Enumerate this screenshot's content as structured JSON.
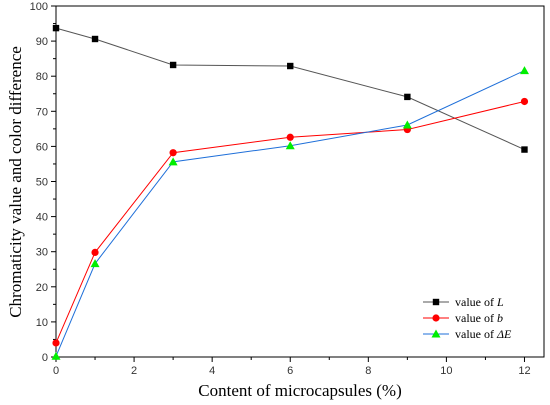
{
  "chart_data": {
    "type": "line",
    "title": "",
    "xlabel": "Content of microcapsules (%)",
    "ylabel": "Chromaticity value and color difference",
    "xlim": [
      0,
      12.5
    ],
    "ylim": [
      0,
      100
    ],
    "x_ticks": [
      0,
      2,
      4,
      6,
      8,
      10,
      12
    ],
    "y_ticks": [
      0,
      10,
      20,
      30,
      40,
      50,
      60,
      70,
      80,
      90,
      100
    ],
    "x_tick_labels": [
      "0",
      "2",
      "4",
      "6",
      "8",
      "10",
      "12"
    ],
    "y_tick_labels": [
      "0",
      "10",
      "20",
      "30",
      "40",
      "50",
      "60",
      "70",
      "80",
      "90",
      "100"
    ],
    "grid": false,
    "legend_position": "bottom-right",
    "x": [
      0,
      1,
      3,
      6,
      9,
      12
    ],
    "series": [
      {
        "name": "value of L",
        "legend_prefix": "value of ",
        "legend_var": "L",
        "color": "#000000",
        "line_color": "#555555",
        "marker": "square",
        "values": [
          93.7,
          90.6,
          83.2,
          82.9,
          74.1,
          59.1
        ]
      },
      {
        "name": "value of b",
        "legend_prefix": "value of ",
        "legend_var": "b",
        "color": "#ff0000",
        "line_color": "#ff0000",
        "marker": "circle",
        "values": [
          4.0,
          29.8,
          58.2,
          62.6,
          64.8,
          72.8
        ]
      },
      {
        "name": "value of ΔE",
        "legend_prefix": "value of ",
        "legend_var": "ΔE",
        "color": "#00ee00",
        "line_color": "#1e6fd9",
        "marker": "triangle",
        "values": [
          0.2,
          26.6,
          55.6,
          60.2,
          66.1,
          81.6
        ]
      }
    ]
  }
}
